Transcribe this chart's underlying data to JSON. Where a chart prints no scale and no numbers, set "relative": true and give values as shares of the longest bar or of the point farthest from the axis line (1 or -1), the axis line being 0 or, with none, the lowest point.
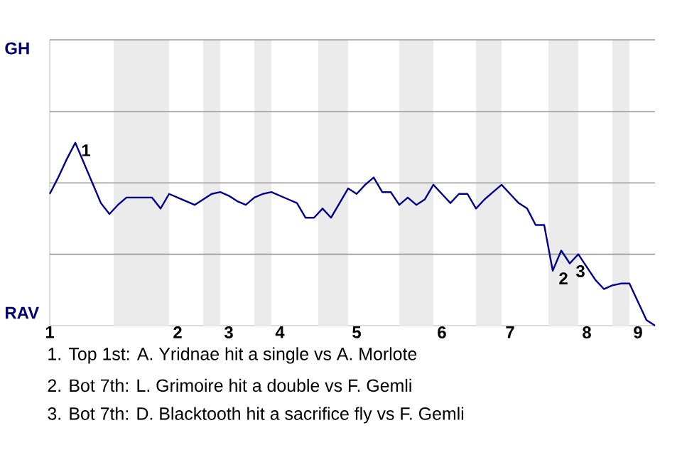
{
  "chart_data": {
    "type": "line",
    "relative": true,
    "categories": [
      "1",
      null,
      null,
      null,
      null,
      null,
      null,
      null,
      null,
      null,
      null,
      null,
      null,
      null,
      null,
      "2",
      null,
      null,
      null,
      null,
      null,
      "3",
      null,
      null,
      null,
      null,
      null,
      "4",
      null,
      null,
      null,
      null,
      null,
      null,
      null,
      null,
      "5",
      null,
      null,
      null,
      null,
      null,
      null,
      null,
      null,
      null,
      "6",
      null,
      null,
      null,
      null,
      null,
      null,
      null,
      "7",
      null,
      null,
      null,
      null,
      null,
      null,
      null,
      null,
      "8",
      null,
      null,
      null,
      null,
      null,
      "9",
      null,
      null
    ],
    "series": [
      {
        "color": "#00008b",
        "values": [
          0.72,
          0.81,
          0.91,
          1,
          0.89,
          0.78,
          0.67,
          0.61,
          0.66,
          0.7,
          0.7,
          0.7,
          0.7,
          0.64,
          0.72,
          0.7,
          0.68,
          0.66,
          0.69,
          0.72,
          0.73,
          0.71,
          0.68,
          0.66,
          0.7,
          0.72,
          0.73,
          0.71,
          0.69,
          0.67,
          0.59,
          0.59,
          0.64,
          0.59,
          0.67,
          0.75,
          0.72,
          0.77,
          0.81,
          0.73,
          0.73,
          0.66,
          0.7,
          0.66,
          0.69,
          0.77,
          0.72,
          0.67,
          0.72,
          0.72,
          0.64,
          0.69,
          0.73,
          0.77,
          0.72,
          0.67,
          0.64,
          0.55,
          0.55,
          0.3,
          0.41,
          0.34,
          0.39,
          0.32,
          0.25,
          0.2,
          0.22,
          0.23,
          0.23,
          0.13,
          0.03,
          0
        ]
      }
    ],
    "value_labels": [
      null,
      null,
      null,
      "1",
      null,
      null,
      null,
      null,
      null,
      null,
      null,
      null,
      null,
      null,
      null,
      null,
      null,
      null,
      null,
      null,
      null,
      null,
      null,
      null,
      null,
      null,
      null,
      null,
      null,
      null,
      null,
      null,
      null,
      null,
      null,
      null,
      null,
      null,
      null,
      null,
      null,
      null,
      null,
      null,
      null,
      null,
      null,
      null,
      null,
      null,
      null,
      null,
      null,
      null,
      null,
      null,
      null,
      null,
      null,
      "2",
      null,
      "3",
      null,
      null,
      null,
      null,
      null,
      null,
      null,
      null,
      null,
      null
    ],
    "ref_lines": [
      {
        "axis": "y",
        "value": 0.39,
        "color": "#999999"
      },
      {
        "axis": "y",
        "value": 0.78,
        "color": "#999999"
      },
      {
        "axis": "y",
        "value": 1.17,
        "color": "#999999"
      }
    ],
    "marker": "none",
    "annotations": [
      "GH",
      "RAV",
      "1. Top 1st: A. Yridnae hit a single vs A. Morlote",
      "2. Bot 7th: L. Grimoire hit a double vs F. Gemli",
      "3. Bot 7th: D. Blacktooth hit a sacrifice fly vs F. Gemli"
    ]
  }
}
